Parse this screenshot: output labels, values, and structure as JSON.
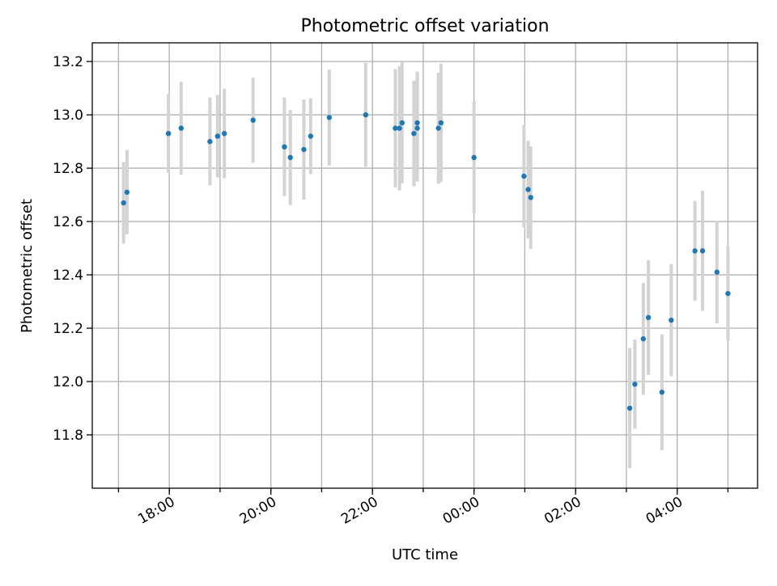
{
  "chart_data": {
    "type": "scatter",
    "title": "Photometric offset variation",
    "xlabel": "UTC time",
    "ylabel": "Photometric offset",
    "x_ticks": [
      "17:00",
      "18:00",
      "19:00",
      "20:00",
      "21:00",
      "22:00",
      "23:00",
      "00:00",
      "01:00",
      "02:00",
      "03:00",
      "04:00",
      "05:00"
    ],
    "x_tick_labels": [
      "18:00",
      "20:00",
      "22:00",
      "00:00",
      "02:00",
      "04:00"
    ],
    "x_tick_label_values": [
      "18:00",
      "20:00",
      "22:00",
      "00:00",
      "02:00",
      "04:00"
    ],
    "xlim": [
      "16:29",
      "05:35"
    ],
    "y_ticks": [
      11.8,
      12.0,
      12.2,
      12.4,
      12.6,
      12.8,
      13.0,
      13.2
    ],
    "y_tick_labels": [
      "11.8",
      "12.0",
      "12.2",
      "12.4",
      "12.6",
      "12.8",
      "13.0",
      "13.2"
    ],
    "ylim": [
      11.6,
      13.27
    ],
    "grid": true,
    "legend": "none",
    "colors": {
      "point": "#1f77b4",
      "errorbar": "#d3d3d3",
      "grid": "#b0b0b0"
    },
    "points": [
      {
        "x": "17:06",
        "y": 12.67,
        "err": 0.153
      },
      {
        "x": "17:10",
        "y": 12.71,
        "err": 0.158
      },
      {
        "x": "17:59",
        "y": 12.93,
        "err": 0.148
      },
      {
        "x": "18:14",
        "y": 12.95,
        "err": 0.174
      },
      {
        "x": "18:48",
        "y": 12.9,
        "err": 0.165
      },
      {
        "x": "18:57",
        "y": 12.92,
        "err": 0.155
      },
      {
        "x": "19:05",
        "y": 12.93,
        "err": 0.168
      },
      {
        "x": "19:39",
        "y": 12.98,
        "err": 0.16
      },
      {
        "x": "20:16",
        "y": 12.88,
        "err": 0.185
      },
      {
        "x": "20:23",
        "y": 12.84,
        "err": 0.178
      },
      {
        "x": "20:39",
        "y": 12.87,
        "err": 0.188
      },
      {
        "x": "20:47",
        "y": 12.92,
        "err": 0.142
      },
      {
        "x": "21:09",
        "y": 12.99,
        "err": 0.18
      },
      {
        "x": "21:52",
        "y": 13.0,
        "err": 0.195
      },
      {
        "x": "22:27",
        "y": 12.95,
        "err": 0.222
      },
      {
        "x": "22:32",
        "y": 12.95,
        "err": 0.233
      },
      {
        "x": "22:35",
        "y": 12.97,
        "err": 0.227
      },
      {
        "x": "22:49",
        "y": 12.93,
        "err": 0.198
      },
      {
        "x": "22:53",
        "y": 12.95,
        "err": 0.2
      },
      {
        "x": "22:53",
        "y": 12.97,
        "err": 0.192
      },
      {
        "x": "23:18",
        "y": 12.95,
        "err": 0.208
      },
      {
        "x": "23:21",
        "y": 12.97,
        "err": 0.222
      },
      {
        "x": "00:00",
        "y": 12.84,
        "err": 0.21
      },
      {
        "x": "00:59",
        "y": 12.77,
        "err": 0.192
      },
      {
        "x": "01:04",
        "y": 12.72,
        "err": 0.183
      },
      {
        "x": "01:07",
        "y": 12.69,
        "err": 0.192
      },
      {
        "x": "03:04",
        "y": 11.9,
        "err": 0.225
      },
      {
        "x": "03:10",
        "y": 11.99,
        "err": 0.167
      },
      {
        "x": "03:20",
        "y": 12.16,
        "err": 0.21
      },
      {
        "x": "03:26",
        "y": 12.24,
        "err": 0.215
      },
      {
        "x": "03:42",
        "y": 11.96,
        "err": 0.217
      },
      {
        "x": "03:53",
        "y": 12.23,
        "err": 0.21
      },
      {
        "x": "04:21",
        "y": 12.49,
        "err": 0.187
      },
      {
        "x": "04:30",
        "y": 12.49,
        "err": 0.225
      },
      {
        "x": "04:47",
        "y": 12.41,
        "err": 0.192
      },
      {
        "x": "05:00",
        "y": 12.33,
        "err": 0.177
      }
    ]
  }
}
